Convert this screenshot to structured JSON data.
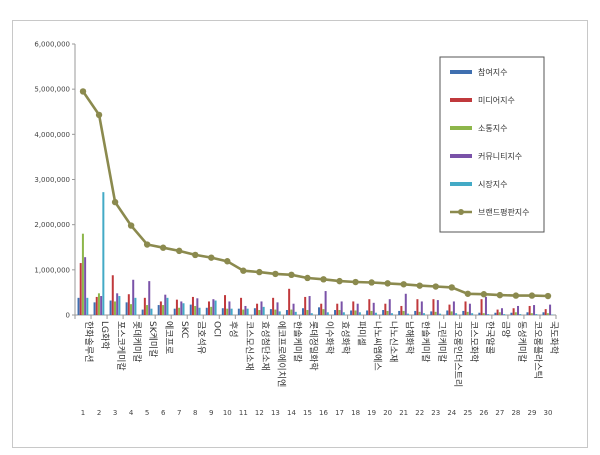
{
  "chart_data": {
    "type": "bar",
    "title": "",
    "xlabel": "",
    "ylabel": "",
    "ylim": [
      0,
      6000000
    ],
    "yticks": [
      "0",
      "1,000,000",
      "2,000,000",
      "3,000,000",
      "4,000,000",
      "5,000,000",
      "6,000,000"
    ],
    "grid": false,
    "legend_position": "top-right",
    "x": [
      "1",
      "2",
      "3",
      "4",
      "5",
      "6",
      "7",
      "8",
      "9",
      "10",
      "11",
      "12",
      "13",
      "14",
      "15",
      "16",
      "17",
      "18",
      "19",
      "20",
      "21",
      "22",
      "23",
      "24",
      "25",
      "26",
      "27",
      "28",
      "29",
      "30"
    ],
    "categories": [
      "한화솔루션",
      "LG화학",
      "포스코케미칼",
      "롯데케미칼",
      "SK케미칼",
      "에코프로",
      "SKC",
      "금호석유",
      "OCI",
      "후성",
      "코스모신소재",
      "효성첨단소재",
      "에코프로에이치엔",
      "한솔케미칼",
      "롯데정밀화학",
      "이수화학",
      "효성화학",
      "파미셀",
      "나노씨엠에스",
      "나노신소재",
      "남해화학",
      "한솔케미칼",
      "그린케미칼",
      "코오롱인더스트리",
      "코스모화학",
      "한국알콜",
      "금양",
      "동성케미칼",
      "코오롱플라스틱",
      "국도화학"
    ],
    "series": [
      {
        "name": "참여지수",
        "type": "bar",
        "color": "#3f6fb0",
        "values": [
          380000,
          280000,
          320000,
          280000,
          120000,
          220000,
          140000,
          230000,
          160000,
          150000,
          140000,
          150000,
          130000,
          110000,
          150000,
          170000,
          110000,
          100000,
          100000,
          110000,
          90000,
          90000,
          80000,
          100000,
          90000,
          50000,
          50000,
          50000,
          60000,
          60000
        ]
      },
      {
        "name": "미디어지수",
        "type": "bar",
        "color": "#c0393c",
        "values": [
          1150000,
          400000,
          880000,
          460000,
          380000,
          300000,
          340000,
          400000,
          300000,
          440000,
          380000,
          250000,
          380000,
          580000,
          400000,
          250000,
          250000,
          300000,
          350000,
          250000,
          200000,
          350000,
          350000,
          230000,
          300000,
          350000,
          120000,
          150000,
          200000,
          130000
        ]
      },
      {
        "name": "소통지수",
        "type": "bar",
        "color": "#8db64a",
        "values": [
          1800000,
          480000,
          300000,
          240000,
          220000,
          220000,
          160000,
          200000,
          180000,
          140000,
          120000,
          110000,
          120000,
          120000,
          110000,
          130000,
          110000,
          100000,
          90000,
          90000,
          90000,
          70000,
          70000,
          80000,
          70000,
          40000,
          60000,
          60000,
          40000,
          40000
        ]
      },
      {
        "name": "커뮤니티지수",
        "type": "bar",
        "color": "#7a52a8",
        "values": [
          1280000,
          420000,
          480000,
          780000,
          750000,
          450000,
          300000,
          370000,
          350000,
          300000,
          200000,
          300000,
          280000,
          250000,
          420000,
          530000,
          300000,
          250000,
          270000,
          350000,
          470000,
          300000,
          330000,
          300000,
          250000,
          400000,
          150000,
          200000,
          220000,
          230000
        ]
      },
      {
        "name": "시장지수",
        "type": "bar",
        "color": "#43aac6",
        "values": [
          380000,
          2720000,
          420000,
          380000,
          140000,
          380000,
          260000,
          160000,
          320000,
          140000,
          140000,
          180000,
          80000,
          70000,
          40000,
          60000,
          60000,
          60000,
          50000,
          40000,
          30000,
          40000,
          30000,
          40000,
          40000,
          20000,
          20000,
          20000,
          20000,
          10000
        ]
      },
      {
        "name": "브랜드평판지수",
        "type": "line",
        "color": "#8b8a4e",
        "values": [
          4950000,
          4430000,
          2500000,
          1980000,
          1560000,
          1490000,
          1420000,
          1330000,
          1270000,
          1190000,
          980000,
          950000,
          910000,
          890000,
          820000,
          790000,
          750000,
          730000,
          720000,
          700000,
          680000,
          650000,
          630000,
          610000,
          470000,
          460000,
          440000,
          430000,
          430000,
          420000
        ]
      }
    ]
  }
}
